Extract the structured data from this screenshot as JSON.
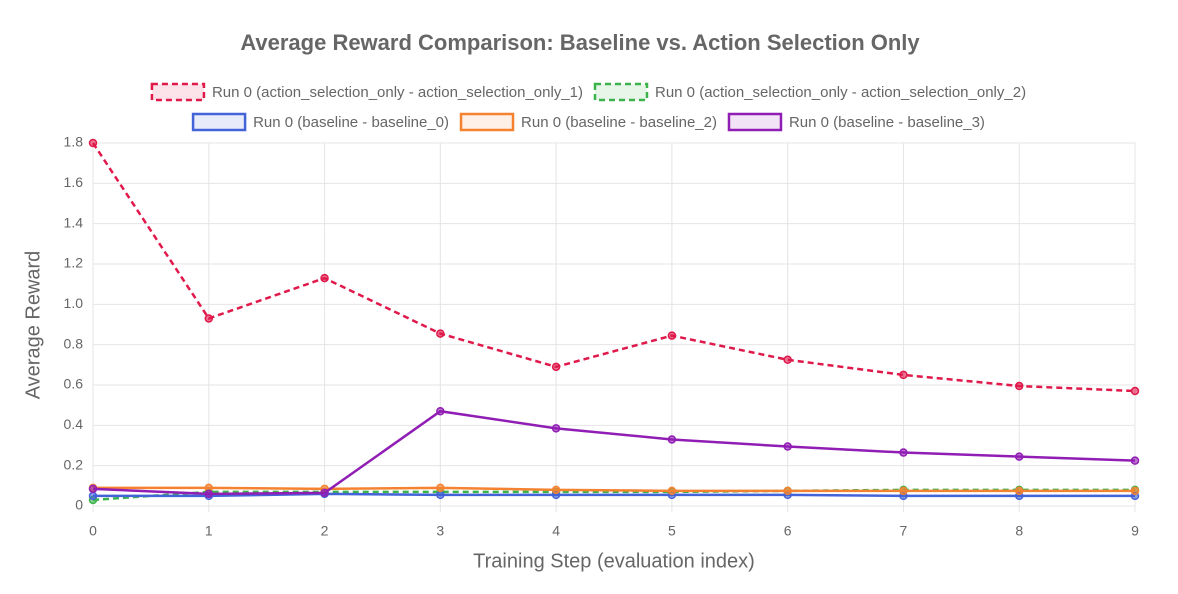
{
  "chart_data": {
    "type": "line",
    "title": "Average Reward Comparison: Baseline vs. Action Selection Only",
    "x_label": "Training Step (evaluation index)",
    "y_label": "Average Reward",
    "x": [
      0,
      1,
      2,
      3,
      4,
      5,
      6,
      7,
      8,
      9
    ],
    "xlim": [
      0,
      9
    ],
    "xticks": [
      0,
      1,
      2,
      3,
      4,
      5,
      6,
      7,
      8,
      9
    ],
    "ylim": [
      0,
      1.8
    ],
    "yticks": [
      0,
      0.2,
      0.4,
      0.6,
      0.8,
      {
        "value": 1,
        "label": "1.0"
      },
      1.2,
      1.4,
      1.6,
      1.8
    ],
    "grid": true,
    "legend": "top",
    "series": [
      {
        "name": "Run 0 (action_selection_only - action_selection_only_1)",
        "color": "#e0194b",
        "dashed": true,
        "values": [
          1.8,
          0.93,
          1.13,
          0.855,
          0.69,
          0.845,
          0.725,
          0.65,
          0.595,
          0.57
        ]
      },
      {
        "name": "Run 0 (action_selection_only - action_selection_only_2)",
        "color": "#3cb44b",
        "dashed": true,
        "values": [
          0.03,
          0.07,
          0.07,
          0.07,
          0.07,
          0.07,
          0.075,
          0.08,
          0.08,
          0.08
        ]
      },
      {
        "name": "Run 0 (baseline - baseline_0)",
        "color": "#4363d8",
        "dashed": false,
        "values": [
          0.05,
          0.05,
          0.06,
          0.055,
          0.055,
          0.055,
          0.055,
          0.05,
          0.05,
          0.05
        ]
      },
      {
        "name": "Run 0 (baseline - baseline_2)",
        "color": "#f58231",
        "dashed": false,
        "values": [
          0.09,
          0.09,
          0.085,
          0.09,
          0.08,
          0.075,
          0.075,
          0.075,
          0.075,
          0.075
        ]
      },
      {
        "name": "Run 0 (baseline - baseline_3)",
        "color": "#911eb4",
        "dashed": false,
        "values": [
          0.085,
          0.06,
          0.065,
          0.47,
          0.385,
          0.33,
          0.295,
          0.265,
          0.245,
          0.225
        ]
      }
    ]
  }
}
